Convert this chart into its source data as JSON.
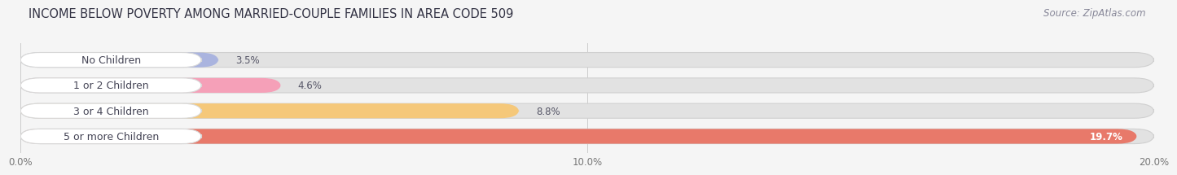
{
  "title": "INCOME BELOW POVERTY AMONG MARRIED-COUPLE FAMILIES IN AREA CODE 509",
  "source": "Source: ZipAtlas.com",
  "categories": [
    "No Children",
    "1 or 2 Children",
    "3 or 4 Children",
    "5 or more Children"
  ],
  "values": [
    3.5,
    4.6,
    8.8,
    19.7
  ],
  "bar_colors": [
    "#aab4df",
    "#f5a0b8",
    "#f5c87a",
    "#e8796a"
  ],
  "label_colors": [
    "#555566",
    "#555566",
    "#555566",
    "#ffffff"
  ],
  "xlim": [
    0,
    20.5
  ],
  "xlim_display": [
    0,
    20.0
  ],
  "xticks": [
    0.0,
    10.0,
    20.0
  ],
  "xticklabels": [
    "0.0%",
    "10.0%",
    "20.0%"
  ],
  "background_color": "#f5f5f5",
  "bar_bg_color": "#e2e2e2",
  "title_fontsize": 10.5,
  "source_fontsize": 8.5,
  "label_fontsize": 8.5,
  "tick_fontsize": 8.5,
  "category_fontsize": 9,
  "bar_height": 0.58,
  "fig_width": 14.06,
  "fig_height": 2.32
}
